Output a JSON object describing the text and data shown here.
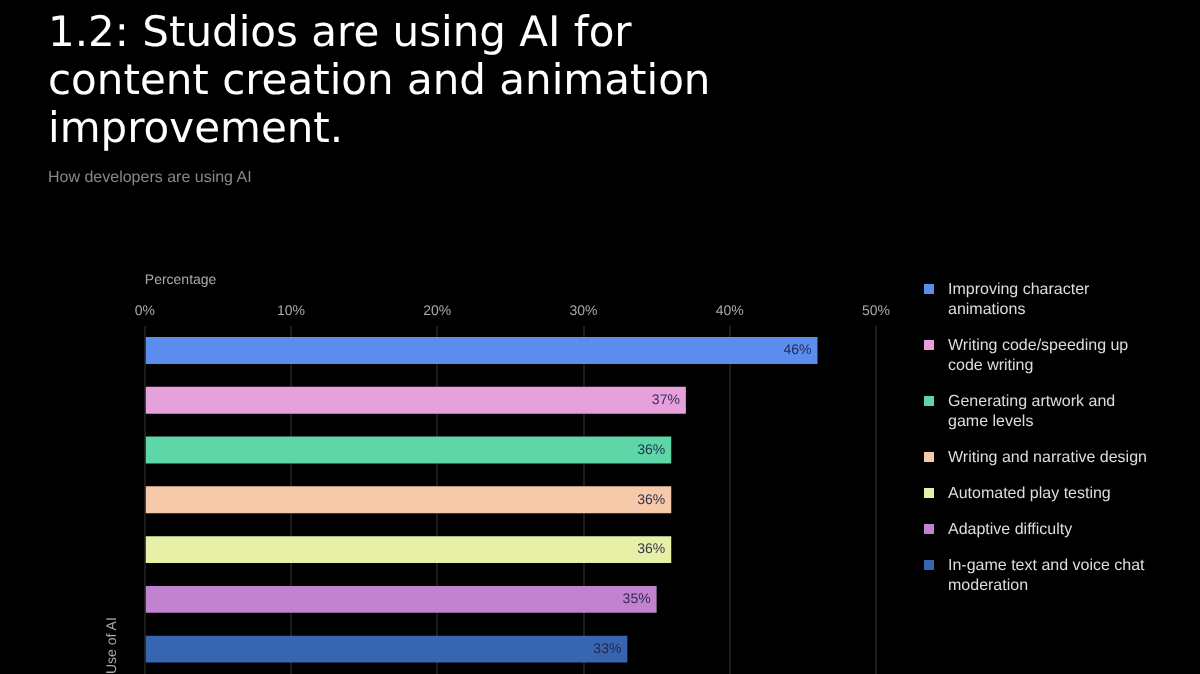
{
  "chart_data": {
    "type": "bar",
    "orientation": "horizontal",
    "title": "1.2: Studios are using AI for content creation and animation improvement.",
    "subtitle": "How developers are using AI",
    "xlabel": "Percentage",
    "ylabel": "Use of AI",
    "categories": [
      null,
      null,
      null,
      null,
      null,
      null,
      null
    ],
    "series": [
      {
        "name": "Improving character animations",
        "color": "#5b8def",
        "values": [
          46,
          null,
          null,
          null,
          null,
          null,
          null
        ],
        "value_labels": [
          "46%",
          null,
          null,
          null,
          null,
          null,
          null
        ]
      },
      {
        "name": "Writing code/speeding up code writing",
        "color": "#e6a0dc",
        "values": [
          null,
          37,
          null,
          null,
          null,
          null,
          null
        ],
        "value_labels": [
          null,
          "37%",
          null,
          null,
          null,
          null,
          null
        ]
      },
      {
        "name": "Generating artwork and game levels",
        "color": "#5fd6a8",
        "values": [
          null,
          null,
          36,
          null,
          null,
          null,
          null
        ],
        "value_labels": [
          null,
          null,
          "36%",
          null,
          null,
          null,
          null
        ]
      },
      {
        "name": "Writing and narrative design",
        "color": "#f6c9aa",
        "values": [
          null,
          null,
          null,
          36,
          null,
          null,
          null
        ],
        "value_labels": [
          null,
          null,
          null,
          "36%",
          null,
          null,
          null
        ]
      },
      {
        "name": "Automated play testing",
        "color": "#e8f0a8",
        "values": [
          null,
          null,
          null,
          null,
          36,
          null,
          null
        ],
        "value_labels": [
          null,
          null,
          null,
          null,
          "36%",
          null,
          null
        ]
      },
      {
        "name": "Adaptive difficulty",
        "color": "#c183cf",
        "values": [
          null,
          null,
          null,
          null,
          null,
          35,
          null
        ],
        "value_labels": [
          null,
          null,
          null,
          null,
          null,
          "35%",
          null
        ]
      },
      {
        "name": "In-game text and voice chat moderation",
        "color": "#3765b0",
        "values": [
          null,
          null,
          null,
          null,
          null,
          null,
          33
        ],
        "value_labels": [
          null,
          null,
          null,
          null,
          null,
          null,
          "33%"
        ]
      }
    ],
    "xlim": [
      0,
      50
    ],
    "xticks": [
      {
        "value": 0,
        "label": "0%"
      },
      {
        "value": 10,
        "label": "10%"
      },
      {
        "value": 20,
        "label": "20%"
      },
      {
        "value": 30,
        "label": "30%"
      },
      {
        "value": 40,
        "label": "40%"
      },
      {
        "value": 50,
        "label": "50%"
      }
    ],
    "grid": "x",
    "legend": "right"
  }
}
